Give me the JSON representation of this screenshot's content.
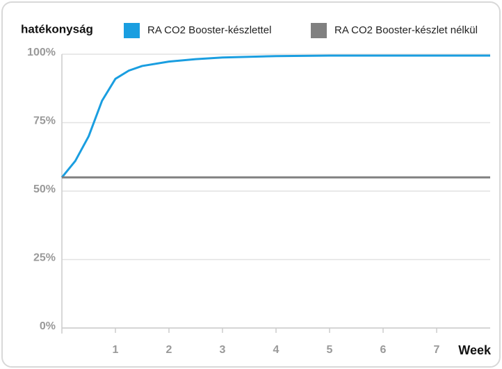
{
  "chart_data": {
    "type": "line",
    "y_label": "hatékonyság",
    "x_label": "Week",
    "xlim": [
      0,
      8
    ],
    "xticks": [
      1,
      2,
      3,
      4,
      5,
      6,
      7
    ],
    "ylim": [
      0,
      100
    ],
    "yticks": [
      {
        "value": 0,
        "label": "0%"
      },
      {
        "value": 25,
        "label": "25%"
      },
      {
        "value": 50,
        "label": "50%"
      },
      {
        "value": 75,
        "label": "75%"
      },
      {
        "value": 100,
        "label": "100%"
      }
    ],
    "grid": true,
    "series": [
      {
        "name": "RA CO2 Booster-készlettel",
        "color": "#1a9ee0",
        "x": [
          0,
          0.25,
          0.5,
          0.75,
          1,
          1.25,
          1.5,
          2,
          2.5,
          3,
          4,
          5,
          6,
          7,
          8
        ],
        "values": [
          55,
          61,
          70,
          83,
          91,
          94,
          95.7,
          97.3,
          98.2,
          98.8,
          99.3,
          99.5,
          99.5,
          99.5,
          99.5
        ]
      },
      {
        "name": "RA CO2 Booster-készlet nélkül",
        "color": "#808080",
        "x": [
          0,
          8
        ],
        "values": [
          55,
          55
        ]
      }
    ]
  }
}
